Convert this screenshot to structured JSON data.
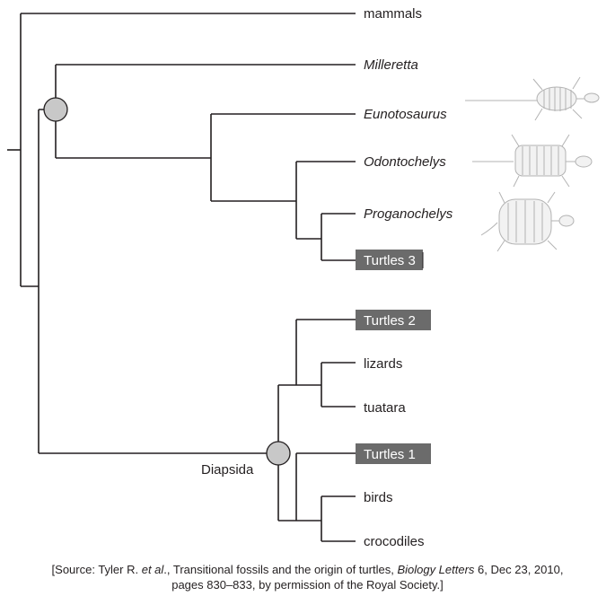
{
  "taxa": {
    "mammals": "mammals",
    "milleretta": "Milleretta",
    "eunotosaurus": "Eunotosaurus",
    "odontochelys": "Odontochelys",
    "proganochelys": "Proganochelys",
    "turtles3": "Turtles 3",
    "turtles2": "Turtles 2",
    "lizards": "lizards",
    "tuatara": "tuatara",
    "turtles1": "Turtles 1",
    "birds": "birds",
    "crocodiles": "crocodiles"
  },
  "node_labels": {
    "diapsida": "Diapsida"
  },
  "source": {
    "prefix": "[Source: Tyler R. ",
    "et_al": "et al",
    "middle": "., Transitional fossils and the origin of turtles, ",
    "journal": "Biology Letters",
    "suffix": " 6, Dec 23, 2010,",
    "line2": "pages 830–833, by permission of the Royal Society.]"
  },
  "colors": {
    "line": "#231f20",
    "node_fill": "#c8c8c8",
    "highlight_box": "#6b6b6b",
    "highlight_text": "#ffffff",
    "skeleton": "#b3b3b3"
  },
  "icons": {
    "skeleton_1": "eunotosaurus-skeleton-icon",
    "skeleton_2": "odontochelys-skeleton-icon",
    "skeleton_3": "proganochelys-skeleton-icon"
  }
}
